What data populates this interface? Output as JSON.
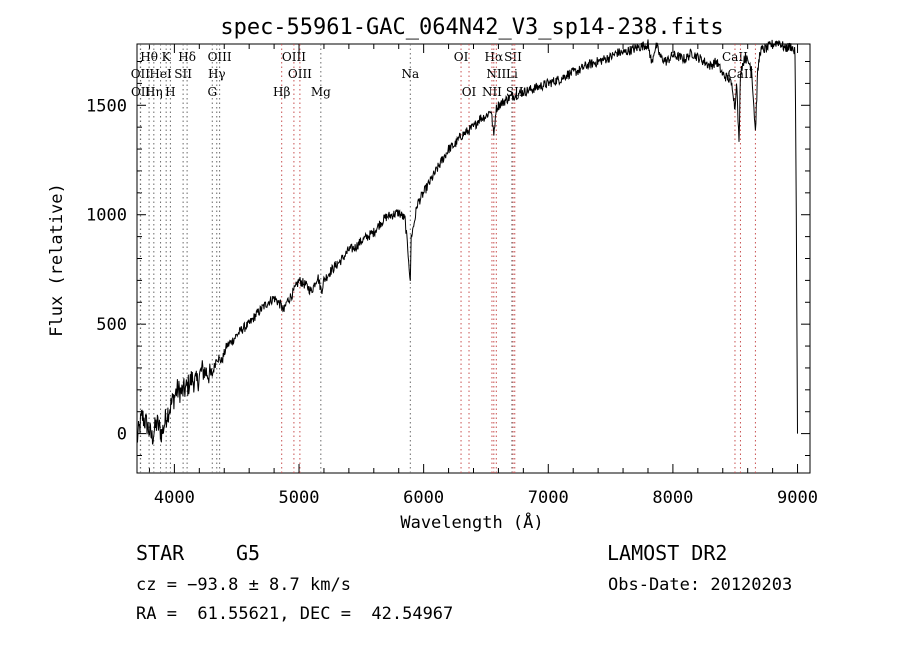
{
  "chart_data": {
    "type": "line",
    "title": "spec-55961-GAC_064N42_V3_sp14-238.fits",
    "xlabel": "Wavelength (Å)",
    "ylabel": "Flux (relative)",
    "xlim": [
      3700,
      9100
    ],
    "ylim": [
      -180,
      1780
    ],
    "xticks": [
      4000,
      5000,
      6000,
      7000,
      8000,
      9000
    ],
    "yticks": [
      0,
      500,
      1000,
      1500
    ],
    "series": [
      {
        "x": [
          3700,
          3740,
          3780,
          3820,
          3860,
          3900,
          3940,
          3980,
          4020,
          4060,
          4100,
          4140,
          4180,
          4220,
          4260,
          4300,
          4340,
          4380,
          4420,
          4460,
          4500,
          4550,
          4600,
          4650,
          4700,
          4750,
          4800,
          4850,
          4880,
          4900,
          4950,
          5000,
          5050,
          5100,
          5150,
          5180,
          5200,
          5250,
          5300,
          5350,
          5400,
          5450,
          5500,
          5550,
          5600,
          5650,
          5700,
          5750,
          5800,
          5850,
          5880,
          5893,
          5900,
          5920,
          5950,
          6000,
          6050,
          6100,
          6150,
          6200,
          6250,
          6300,
          6350,
          6400,
          6450,
          6500,
          6540,
          6563,
          6580,
          6600,
          6650,
          6700,
          6750,
          6800,
          6850,
          6900,
          6950,
          7000,
          7050,
          7100,
          7150,
          7200,
          7250,
          7300,
          7350,
          7400,
          7450,
          7500,
          7550,
          7600,
          7650,
          7700,
          7750,
          7800,
          7830,
          7850,
          7870,
          7900,
          7950,
          8000,
          8050,
          8100,
          8150,
          8200,
          8250,
          8300,
          8350,
          8400,
          8450,
          8480,
          8498,
          8510,
          8530,
          8542,
          8555,
          8580,
          8600,
          8630,
          8662,
          8680,
          8700,
          8750,
          8800,
          8850,
          8900,
          8950,
          8980,
          8990,
          9000
        ],
        "y": [
          -30,
          80,
          40,
          -20,
          50,
          0,
          90,
          140,
          200,
          190,
          210,
          250,
          230,
          290,
          280,
          260,
          350,
          330,
          400,
          420,
          450,
          480,
          500,
          540,
          570,
          600,
          620,
          590,
          560,
          600,
          640,
          700,
          680,
          650,
          720,
          650,
          700,
          740,
          770,
          800,
          840,
          850,
          880,
          900,
          920,
          960,
          990,
          1000,
          1010,
          980,
          800,
          680,
          900,
          950,
          1050,
          1100,
          1150,
          1200,
          1250,
          1300,
          1320,
          1360,
          1380,
          1400,
          1440,
          1450,
          1480,
          1360,
          1480,
          1500,
          1520,
          1540,
          1550,
          1560,
          1570,
          1580,
          1590,
          1600,
          1610,
          1620,
          1640,
          1650,
          1660,
          1680,
          1690,
          1700,
          1710,
          1720,
          1740,
          1740,
          1750,
          1760,
          1770,
          1780,
          1690,
          1750,
          1770,
          1720,
          1700,
          1730,
          1720,
          1710,
          1740,
          1720,
          1700,
          1680,
          1700,
          1640,
          1620,
          1580,
          1480,
          1620,
          1320,
          1660,
          1680,
          1720,
          1700,
          1680,
          1380,
          1650,
          1750,
          1760,
          1780,
          1790,
          1760,
          1770,
          1740,
          1000,
          0
        ]
      }
    ],
    "lines": [
      {
        "label": "Hθ",
        "x": 3797
      },
      {
        "label": "K",
        "x": 3934
      },
      {
        "label": "Hδ",
        "x": 4102
      },
      {
        "label": "OIII",
        "x": 4363
      },
      {
        "label": "OIII",
        "x": 4959
      },
      {
        "label": "OI",
        "x": 6300
      },
      {
        "label": "Hα",
        "x": 6563
      },
      {
        "label": "SII",
        "x": 6717
      },
      {
        "label": "CaII",
        "x": 8498
      },
      {
        "label": "OII",
        "x": 3727
      },
      {
        "label": "HeI",
        "x": 3889
      },
      {
        "label": "SII",
        "x": 4070
      },
      {
        "label": "Hγ",
        "x": 4340
      },
      {
        "label": "OIII",
        "x": 5007
      },
      {
        "label": "Na",
        "x": 5893
      },
      {
        "label": "NII",
        "x": 6583
      },
      {
        "label": "Li",
        "x": 6708
      },
      {
        "label": "CaII",
        "x": 8542
      },
      {
        "label": "OII",
        "x": 3729
      },
      {
        "label": "Hη",
        "x": 3835
      },
      {
        "label": "H",
        "x": 3968
      },
      {
        "label": "G",
        "x": 4304
      },
      {
        "label": "Hβ",
        "x": 4861
      },
      {
        "label": "Mg",
        "x": 5175
      },
      {
        "label": "OI",
        "x": 6364
      },
      {
        "label": "NII",
        "x": 6548
      },
      {
        "label": "SII",
        "x": 6731
      },
      {
        "label": "CaII",
        "x": 8662
      }
    ]
  },
  "info": {
    "object_class": "STAR",
    "subclass": "G5",
    "survey": "LAMOST DR2",
    "redshift": "cz = −93.8 ± 8.7 km/s",
    "obs_date": "Obs-Date: 20120203",
    "coords": "RA =  61.55621, DEC =  42.54967"
  }
}
